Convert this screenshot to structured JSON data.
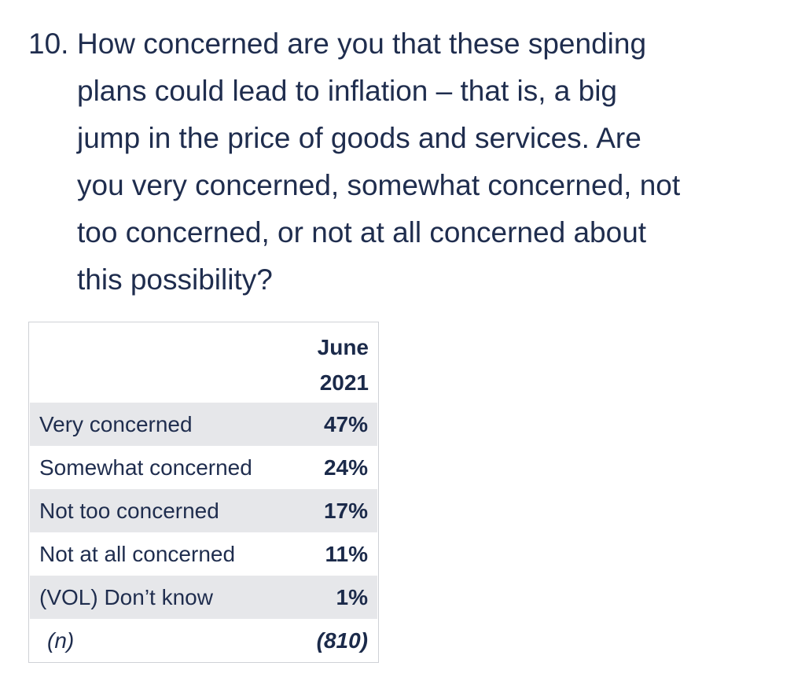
{
  "question": {
    "number": "10.",
    "lines": [
      "How concerned are you that these spending",
      "plans could lead to inflation – that is, a big",
      "jump in the price of goods and services. Are",
      "you very concerned, somewhat concerned, not",
      "too concerned, or not at all concerned about",
      "this possibility?"
    ]
  },
  "table": {
    "column_header": [
      "June",
      "2021"
    ],
    "rows": [
      {
        "label": "Very concerned",
        "value": "47%"
      },
      {
        "label": "Somewhat concerned",
        "value": "24%"
      },
      {
        "label": "Not too concerned",
        "value": "17%"
      },
      {
        "label": "Not at all concerned",
        "value": "11%"
      },
      {
        "label": "(VOL) Don’t know",
        "value": "1%"
      },
      {
        "label": "(n)",
        "value": "(810)"
      }
    ]
  }
}
